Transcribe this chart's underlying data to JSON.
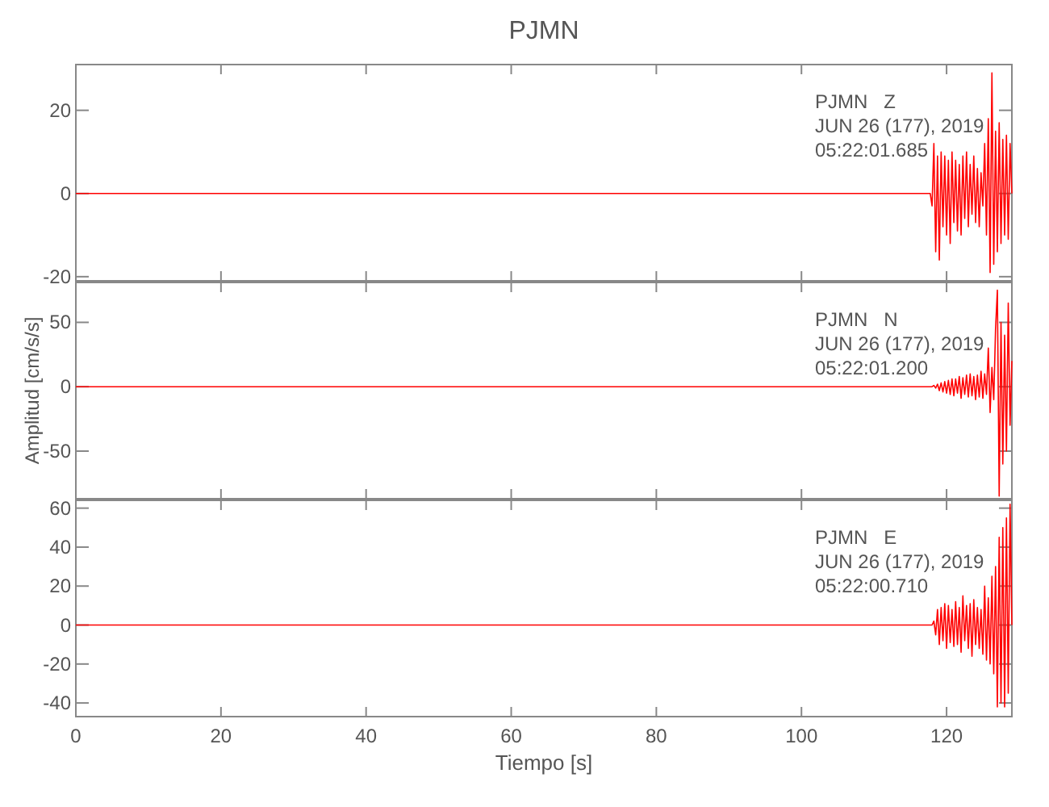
{
  "chart_data": [
    {
      "type": "line",
      "title": "PJMN",
      "annotations": [
        "PJMN   Z",
        "JUN 26 (177), 2019",
        "05:22:01.685"
      ],
      "xlim": [
        0,
        129
      ],
      "xticks": [
        0,
        20,
        40,
        60,
        80,
        100,
        120
      ],
      "ylim": [
        -21,
        31
      ],
      "yticks": [
        -20,
        0,
        20
      ],
      "tick_labels": "y",
      "series": [
        {
          "color": "#ff0000",
          "x": [
            0,
            117.75,
            118,
            118.25,
            118.5,
            118.75,
            119,
            119.25,
            119.5,
            119.75,
            120,
            120.25,
            120.5,
            120.75,
            121,
            121.25,
            121.5,
            121.75,
            122,
            122.25,
            122.5,
            122.75,
            123,
            123.25,
            123.5,
            123.75,
            124,
            124.25,
            124.5,
            124.75,
            125,
            125.25,
            125.5,
            125.75,
            126,
            126.25,
            126.5,
            126.75,
            127,
            127.25,
            127.5,
            127.75,
            128,
            128.25,
            128.5,
            128.75,
            129
          ],
          "values": [
            0,
            0,
            -3,
            12,
            -14,
            9,
            -16,
            10,
            -8,
            9,
            -10,
            8,
            -12,
            10,
            -7,
            8,
            -9,
            7,
            -10,
            9,
            -6,
            10,
            -8,
            7,
            -5,
            9,
            -7,
            6,
            -8,
            5,
            -3,
            12,
            -10,
            18,
            -19,
            29,
            -17,
            15,
            -14,
            17,
            -12,
            13,
            -10,
            14,
            -11,
            12,
            0
          ]
        }
      ]
    },
    {
      "type": "line",
      "ylabel": "Amplitud [cm/s/s]",
      "annotations": [
        "PJMN   N",
        "JUN 26 (177), 2019",
        "05:22:01.200"
      ],
      "xlim": [
        0,
        129
      ],
      "xticks": [
        0,
        20,
        40,
        60,
        80,
        100,
        120
      ],
      "ylim": [
        -87,
        81
      ],
      "yticks": [
        -50,
        0,
        50
      ],
      "tick_labels": "y",
      "series": [
        {
          "color": "#ff0000",
          "x": [
            0,
            117.75,
            118,
            118.25,
            118.5,
            118.75,
            119,
            119.25,
            119.5,
            119.75,
            120,
            120.25,
            120.5,
            120.75,
            121,
            121.25,
            121.5,
            121.75,
            122,
            122.25,
            122.5,
            122.75,
            123,
            123.25,
            123.5,
            123.75,
            124,
            124.25,
            124.5,
            124.75,
            125,
            125.25,
            125.5,
            125.75,
            126,
            126.25,
            126.5,
            126.75,
            127,
            127.25,
            127.5,
            127.75,
            128,
            128.25,
            128.5,
            128.75,
            129
          ],
          "values": [
            0,
            0,
            0,
            1,
            -1,
            2,
            -3,
            3,
            -4,
            4,
            -5,
            5,
            -6,
            6,
            -7,
            6,
            -5,
            8,
            -9,
            7,
            -6,
            9,
            -8,
            10,
            -7,
            8,
            -10,
            9,
            -8,
            12,
            -9,
            10,
            -6,
            30,
            -20,
            15,
            -10,
            45,
            75,
            -85,
            50,
            -60,
            40,
            -50,
            65,
            -30,
            20
          ]
        }
      ]
    },
    {
      "type": "line",
      "xlabel": "Tiempo [s]",
      "annotations": [
        "PJMN   E",
        "JUN 26 (177), 2019",
        "05:22:00.710"
      ],
      "xlim": [
        0,
        129
      ],
      "xticks": [
        0,
        20,
        40,
        60,
        80,
        100,
        120
      ],
      "ylim": [
        -47,
        64
      ],
      "yticks": [
        -40,
        -20,
        0,
        20,
        40,
        60
      ],
      "series": [
        {
          "color": "#ff0000",
          "x": [
            0,
            117.75,
            118,
            118.25,
            118.5,
            118.75,
            119,
            119.25,
            119.5,
            119.75,
            120,
            120.25,
            120.5,
            120.75,
            121,
            121.25,
            121.5,
            121.75,
            122,
            122.25,
            122.5,
            122.75,
            123,
            123.25,
            123.5,
            123.75,
            124,
            124.25,
            124.5,
            124.75,
            125,
            125.25,
            125.5,
            125.75,
            126,
            126.25,
            126.5,
            126.75,
            127,
            127.25,
            127.5,
            127.75,
            128,
            128.25,
            128.5,
            128.75,
            129
          ],
          "values": [
            0,
            0,
            0,
            2,
            -5,
            8,
            -10,
            9,
            -8,
            11,
            -12,
            10,
            -9,
            8,
            -11,
            12,
            -10,
            9,
            -14,
            15,
            -8,
            10,
            -12,
            11,
            -16,
            13,
            -10,
            9,
            -12,
            8,
            -15,
            20,
            -18,
            14,
            -20,
            25,
            -25,
            30,
            -42,
            45,
            -40,
            50,
            -42,
            55,
            -35,
            62,
            0
          ]
        }
      ]
    }
  ]
}
